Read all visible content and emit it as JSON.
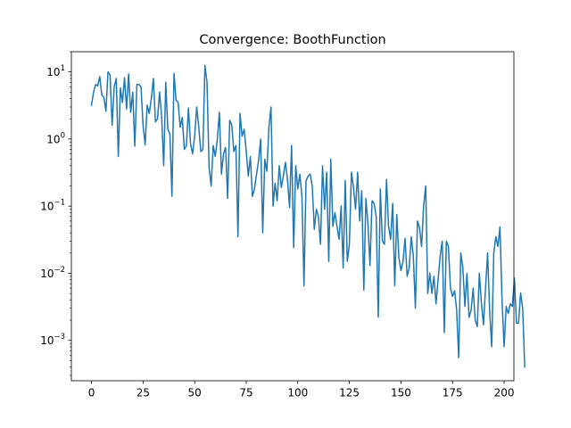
{
  "chart_data": {
    "type": "line",
    "title": "Convergence: BoothFunction",
    "xlabel": "",
    "ylabel": "",
    "y_scale": "log",
    "xlim": [
      -9.75,
      204.75
    ],
    "ylim": [
      0.00025,
      20
    ],
    "grid": false,
    "x_ticks": [
      0,
      25,
      50,
      75,
      100,
      125,
      150,
      175,
      200
    ],
    "x_tick_labels": [
      "0",
      "25",
      "50",
      "75",
      "100",
      "125",
      "150",
      "175",
      "200"
    ],
    "y_ticks": [
      0.001,
      0.01,
      0.1,
      1,
      10
    ],
    "y_tick_labels": [
      {
        "base": "10",
        "exp": "−3"
      },
      {
        "base": "10",
        "exp": "−2"
      },
      {
        "base": "10",
        "exp": "−1"
      },
      {
        "base": "10",
        "exp": "0"
      },
      {
        "base": "10",
        "exp": "1"
      }
    ],
    "series": [
      {
        "color": "#1f77b4",
        "x_start": 0,
        "x_step": 1,
        "values": [
          3.2,
          5.0,
          6.5,
          6.2,
          8.5,
          4.5,
          4.2,
          2.6,
          10.0,
          9.0,
          1.6,
          6.0,
          8.0,
          0.55,
          5.8,
          3.5,
          8.2,
          2.8,
          9.3,
          2.5,
          5.0,
          0.78,
          6.5,
          6.5,
          6.0,
          1.6,
          0.82,
          3.2,
          2.4,
          4.0,
          8.0,
          1.8,
          2.0,
          5.0,
          2.2,
          0.4,
          7.0,
          1.4,
          1.2,
          0.14,
          9.5,
          3.8,
          3.5,
          1.5,
          2.1,
          0.7,
          0.8,
          2.9,
          0.85,
          0.6,
          1.1,
          3.0,
          1.5,
          0.65,
          0.7,
          12.5,
          7.0,
          0.38,
          0.2,
          0.8,
          0.55,
          1.0,
          2.5,
          0.3,
          0.6,
          0.75,
          0.13,
          1.9,
          1.6,
          0.65,
          0.8,
          0.035,
          2.4,
          1.1,
          1.4,
          0.65,
          0.28,
          0.55,
          0.14,
          0.18,
          0.3,
          0.48,
          1.0,
          0.04,
          0.5,
          0.33,
          1.5,
          3.0,
          0.1,
          0.22,
          0.12,
          0.4,
          0.19,
          0.28,
          0.45,
          0.25,
          0.095,
          0.8,
          0.024,
          0.4,
          0.18,
          0.3,
          0.14,
          0.0065,
          0.24,
          0.28,
          0.3,
          0.2,
          0.045,
          0.09,
          0.07,
          0.027,
          0.4,
          0.09,
          0.32,
          0.015,
          0.5,
          0.05,
          0.08,
          0.05,
          0.032,
          0.1,
          0.012,
          0.24,
          0.015,
          0.027,
          0.32,
          0.19,
          0.09,
          0.32,
          0.06,
          0.17,
          0.0056,
          0.13,
          0.055,
          0.013,
          0.12,
          0.11,
          0.07,
          0.0022,
          0.18,
          0.03,
          0.027,
          0.25,
          0.05,
          0.032,
          0.11,
          0.0065,
          0.075,
          0.017,
          0.011,
          0.015,
          0.033,
          0.009,
          0.012,
          0.035,
          0.018,
          0.003,
          0.06,
          0.048,
          0.025,
          0.1,
          0.2,
          0.005,
          0.01,
          0.005,
          0.009,
          0.0035,
          0.008,
          0.018,
          0.03,
          0.0013,
          0.03,
          0.025,
          0.006,
          0.0045,
          0.0055,
          0.0028,
          0.00055,
          0.02,
          0.012,
          0.0032,
          0.01,
          0.0022,
          0.0028,
          0.006,
          0.002,
          0.0016,
          0.01,
          0.0036,
          0.0017,
          0.006,
          0.02,
          0.0027,
          0.0008,
          0.02,
          0.035,
          0.025,
          0.049,
          0.004,
          0.0008,
          0.0032,
          0.0025,
          0.0035,
          0.0032,
          0.0085,
          0.0018,
          0.0018,
          0.0051,
          0.003,
          0.0004
        ]
      }
    ]
  }
}
